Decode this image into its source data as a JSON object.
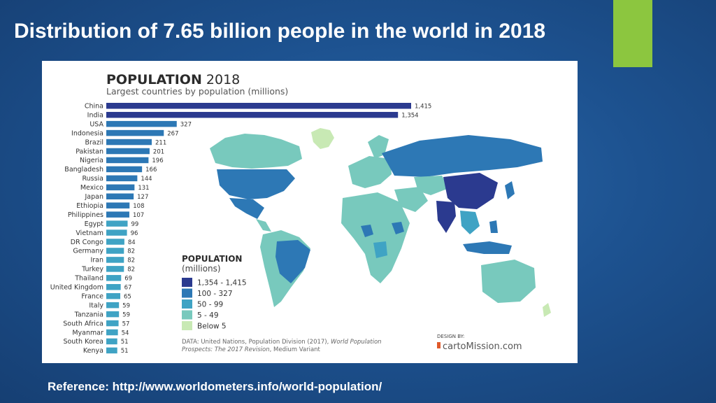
{
  "slide": {
    "title": "Distribution of 7.65 billion people in the world in 2018",
    "reference": "Reference: http://www.worldometers.info/world-population/",
    "accent_color": "#8cc63f"
  },
  "chart_data": {
    "type": "bar",
    "orientation": "horizontal",
    "title_bold": "POPULATION",
    "title_year": "2018",
    "subtitle": "Largest countries by population (millions)",
    "categories": [
      "China",
      "India",
      "USA",
      "Indonesia",
      "Brazil",
      "Pakistan",
      "Nigeria",
      "Bangladesh",
      "Russia",
      "Mexico",
      "Japan",
      "Ethiopia",
      "Philippines",
      "Egypt",
      "Vietnam",
      "DR Congo",
      "Germany",
      "Iran",
      "Turkey",
      "Thailand",
      "United Kingdom",
      "France",
      "Italy",
      "Tanzania",
      "South Africa",
      "Myanmar",
      "South Korea",
      "Kenya"
    ],
    "values": [
      1415,
      1354,
      327,
      267,
      211,
      201,
      196,
      166,
      144,
      131,
      127,
      108,
      107,
      99,
      96,
      84,
      82,
      82,
      82,
      69,
      67,
      65,
      59,
      59,
      57,
      54,
      51,
      51
    ],
    "value_labels": [
      "1,415",
      "1,354",
      "327",
      "267",
      "211",
      "201",
      "196",
      "166",
      "144",
      "131",
      "127",
      "108",
      "107",
      "99",
      "96",
      "84",
      "82",
      "82",
      "82",
      "69",
      "67",
      "65",
      "59",
      "59",
      "57",
      "54",
      "51",
      "51"
    ],
    "xlim": [
      0,
      1415
    ],
    "grid": false,
    "legend": {
      "title": "POPULATION",
      "subtitle": "(millions)",
      "placement": "bottom-center",
      "bins": [
        {
          "label": "1,354 - 1,415",
          "color": "#2b3a8f"
        },
        {
          "label": "100 - 327",
          "color": "#2d78b5"
        },
        {
          "label": "50 - 99",
          "color": "#3fa3c4"
        },
        {
          "label": "5 - 49",
          "color": "#78c9bd"
        },
        {
          "label": "Below 5",
          "color": "#c8e9b4"
        }
      ]
    },
    "source": {
      "line1_plain": "DATA: United Nations, Population Division (2017), ",
      "line1_italic": "World Population",
      "line2_italic": "Prospects: The 2017 Revision",
      "line2_plain": ", Medium Variant"
    },
    "branding": {
      "small": "DESIGN BY:",
      "name": "cartoMission.com"
    }
  }
}
